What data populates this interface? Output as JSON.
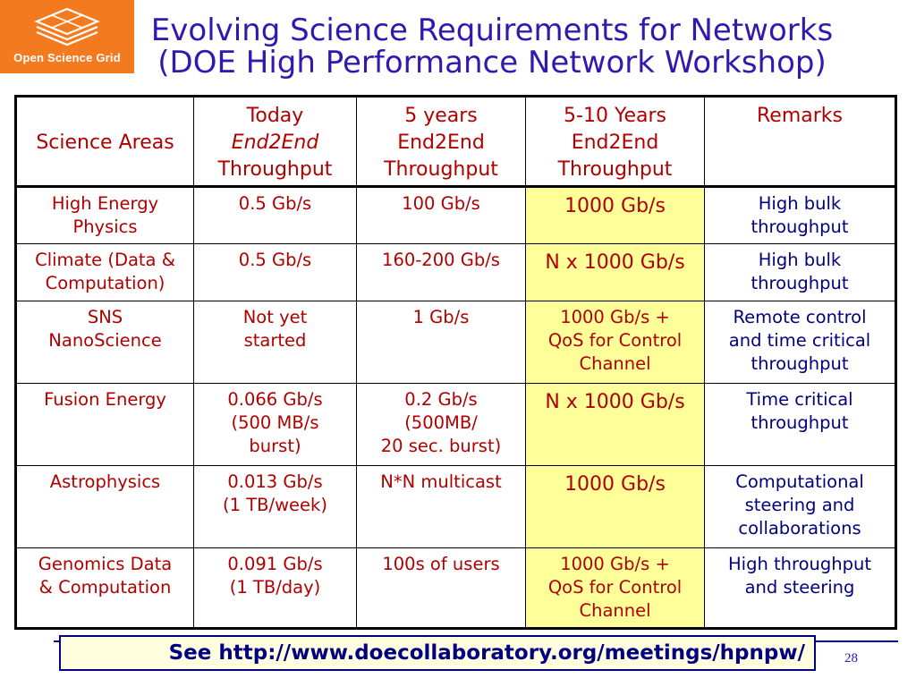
{
  "logo": {
    "text": "Open Science Grid"
  },
  "title": {
    "line1": "Evolving Science Requirements for Networks",
    "line2": "(DOE High Performance Network Workshop)"
  },
  "table": {
    "headers": {
      "science_areas": "Science Areas",
      "today": [
        "Today",
        "End2End",
        "Throughput"
      ],
      "five_years": [
        "5 years",
        "End2End",
        "Throughput"
      ],
      "five_ten_years": [
        "5-10 Years",
        "End2End",
        "Throughput"
      ],
      "remarks": "Remarks"
    },
    "rows": [
      {
        "area": [
          "High Energy",
          "Physics"
        ],
        "today": [
          "0.5 Gb/s"
        ],
        "five": [
          "100 Gb/s"
        ],
        "ten": [
          "1000 Gb/s"
        ],
        "remarks": [
          "High bulk",
          "throughput"
        ]
      },
      {
        "area": [
          "Climate (Data &",
          "Computation)"
        ],
        "today": [
          "0.5 Gb/s"
        ],
        "five": [
          "160-200 Gb/s"
        ],
        "ten": [
          "N x 1000 Gb/s"
        ],
        "remarks": [
          "High bulk",
          "throughput"
        ]
      },
      {
        "area": [
          "SNS",
          "NanoScience"
        ],
        "today": [
          "Not yet",
          "started"
        ],
        "five": [
          "1 Gb/s"
        ],
        "ten": [
          "1000 Gb/s +",
          "QoS for Control",
          "Channel"
        ],
        "remarks": [
          "Remote control",
          "and time critical",
          "throughput"
        ]
      },
      {
        "area": [
          "Fusion Energy"
        ],
        "today": [
          "0.066 Gb/s",
          "(500 MB/s",
          "burst)"
        ],
        "five": [
          "0.2 Gb/s",
          "(500MB/",
          "20 sec. burst)"
        ],
        "ten": [
          "N x 1000 Gb/s"
        ],
        "remarks": [
          "Time critical",
          "throughput"
        ]
      },
      {
        "area": [
          "Astrophysics"
        ],
        "today": [
          "0.013 Gb/s",
          "(1 TB/week)"
        ],
        "five": [
          "N*N multicast"
        ],
        "ten": [
          "1000 Gb/s"
        ],
        "remarks": [
          "Computational",
          "steering and",
          "collaborations"
        ]
      },
      {
        "area": [
          "Genomics Data",
          "& Computation"
        ],
        "today": [
          "0.091 Gb/s",
          "(1 TB/day)"
        ],
        "five": [
          "100s of users"
        ],
        "ten": [
          "1000 Gb/s +",
          "QoS for Control",
          "Channel"
        ],
        "remarks": [
          "High throughput",
          "and steering"
        ]
      }
    ]
  },
  "footer": {
    "link_text": "See http://www.doecollaboratory.org/meetings/hpnpw/",
    "page_number": "28"
  },
  "colors": {
    "title": "#3318b0",
    "cell_text": "#b00000",
    "remark_text": "#000080",
    "highlight": "#ffff99",
    "logo_bg": "#f47a20"
  }
}
